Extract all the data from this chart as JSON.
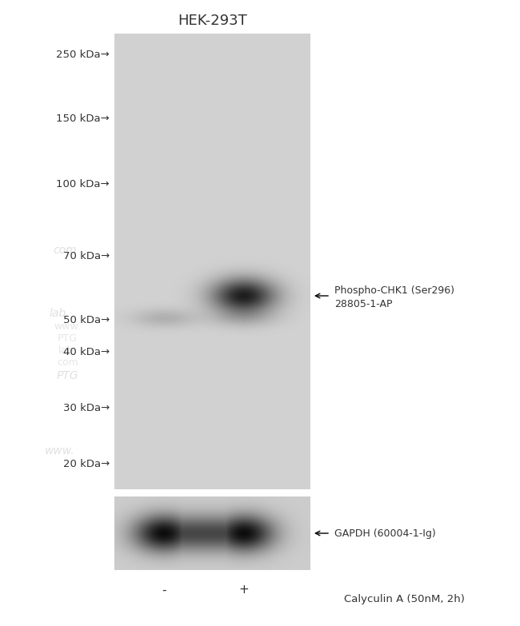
{
  "title": "HEK-293T",
  "bg_color": "#ffffff",
  "watermark_lines": [
    "www.",
    "PTG",
    "lab.",
    "com"
  ],
  "mw_labels": [
    "250 kDa→",
    "150 kDa→",
    "100 kDa→",
    "70 kDa→",
    "50 kDa→",
    "40 kDa→",
    "30 kDa→",
    "20 kDa→"
  ],
  "main_band_label_line1": "Phospho-CHK1 (Ser296)",
  "main_band_label_line2": "28805-1-AP",
  "gapdh_label": "← GAPDH (60004-1-Ig)",
  "bottom_label": "Calyculin A (50nM, 2h)",
  "lane_minus_label": "-",
  "lane_plus_label": "+",
  "gel_light_gray": 0.82,
  "gel_dark_factor": 0.7,
  "gel_band_dark": 0.08,
  "gapdh_gel_gray": 0.8,
  "gapdh_band_dark": 0.04
}
